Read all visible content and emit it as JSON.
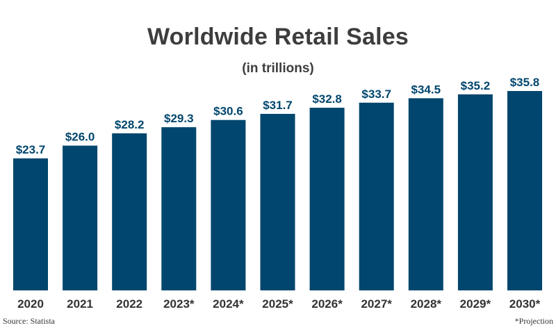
{
  "chart_data": {
    "type": "bar",
    "title": "Worldwide Retail Sales",
    "subtitle": "(in trillions)",
    "categories": [
      "2020",
      "2021",
      "2022",
      "2023*",
      "2024*",
      "2025*",
      "2026*",
      "2027*",
      "2028*",
      "2029*",
      "2030*"
    ],
    "values": [
      23.7,
      26.0,
      28.2,
      29.3,
      30.6,
      31.7,
      32.8,
      33.7,
      34.5,
      35.2,
      35.8
    ],
    "value_labels": [
      "$23.7",
      "$26.0",
      "$28.2",
      "$29.3",
      "$30.6",
      "$31.7",
      "$32.8",
      "$33.7",
      "$34.5",
      "$35.2",
      "$35.8"
    ],
    "xlabel": "",
    "ylabel": "",
    "ylim": [
      0,
      35.8
    ],
    "grid": false,
    "legend": "none",
    "bar_color": "#00466e",
    "label_color": "#00466e"
  },
  "footer": {
    "source": "Source: Statista",
    "note": "*Projection"
  }
}
